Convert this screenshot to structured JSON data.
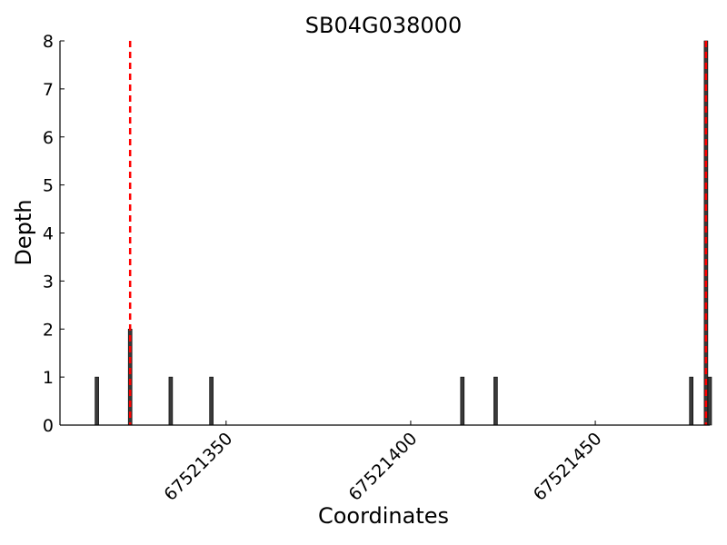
{
  "chart_data": {
    "type": "bar",
    "title": "SB04G038000",
    "xlabel": "Coordinates",
    "ylabel": "Depth",
    "xlim": [
      67521305,
      67521481
    ],
    "ylim": [
      0,
      8
    ],
    "yticks": [
      0,
      1,
      2,
      3,
      4,
      5,
      6,
      7,
      8
    ],
    "xticks": [
      67521350,
      67521400,
      67521450
    ],
    "bar_color": "#3a3a3a",
    "series": [
      {
        "points": [
          {
            "x": 67521315,
            "y": 1
          },
          {
            "x": 67521324,
            "y": 2
          },
          {
            "x": 67521335,
            "y": 1
          },
          {
            "x": 67521346,
            "y": 1
          },
          {
            "x": 67521414,
            "y": 1
          },
          {
            "x": 67521423,
            "y": 1
          },
          {
            "x": 67521476,
            "y": 1
          },
          {
            "x": 67521480,
            "y": 8
          },
          {
            "x": 67521481,
            "y": 1
          }
        ]
      }
    ],
    "vlines": [
      {
        "x": 67521324,
        "style": "dashed",
        "color": "#ff0000"
      },
      {
        "x": 67521480,
        "style": "dashed",
        "color": "#ff0000"
      }
    ],
    "grid": false
  }
}
